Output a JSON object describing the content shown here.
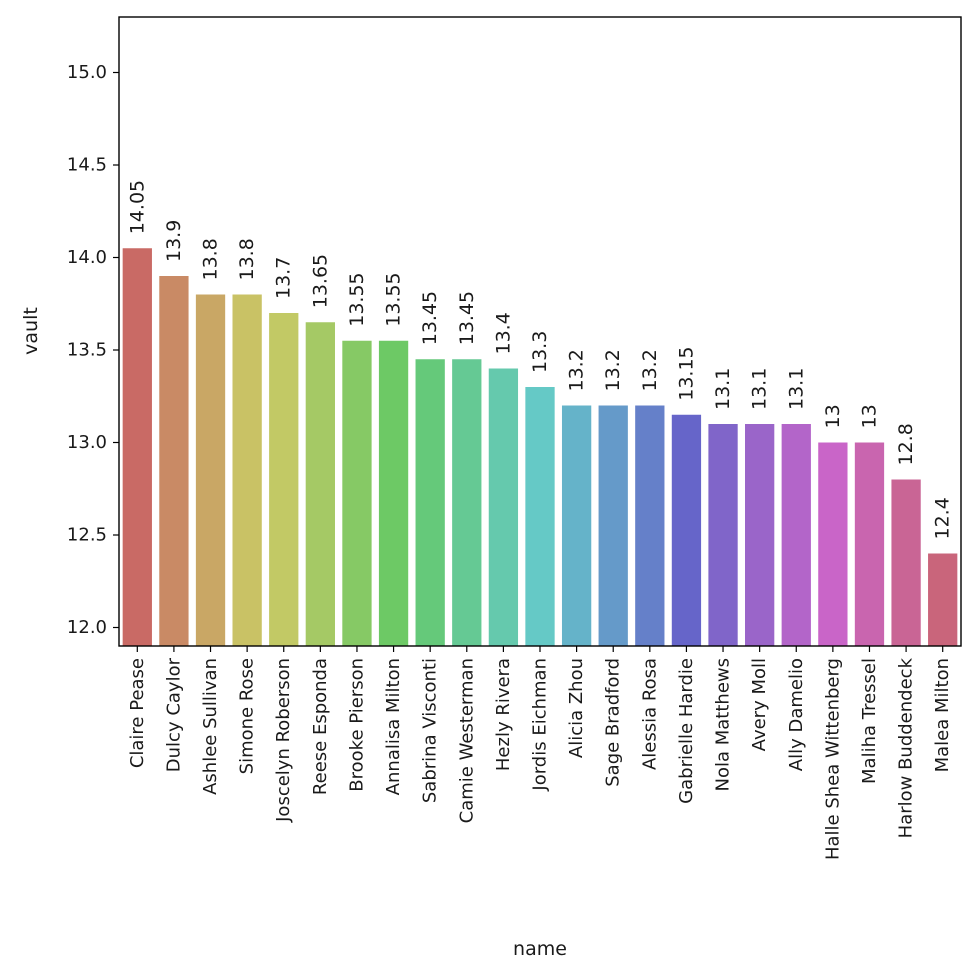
{
  "chart_data": {
    "type": "bar",
    "title": "",
    "xlabel": "name",
    "ylabel": "vault",
    "ylim": [
      11.9,
      15.3
    ],
    "yticks": [
      12.0,
      12.5,
      13.0,
      13.5,
      14.0,
      14.5,
      15.0
    ],
    "ytick_labels": [
      "12.0",
      "12.5",
      "13.0",
      "13.5",
      "14.0",
      "14.5",
      "15.0"
    ],
    "grid": false,
    "categories": [
      "Claire Pease",
      "Dulcy Caylor",
      "Ashlee Sullivan",
      "Simone Rose",
      "Joscelyn Roberson",
      "Reese Esponda",
      "Brooke Pierson",
      "Annalisa Milton",
      "Sabrina Visconti",
      "Camie Westerman",
      "Hezly Rivera",
      "Jordis Eichman",
      "Alicia Zhou",
      "Sage Bradford",
      "Alessia Rosa",
      "Gabrielle Hardie",
      "Nola Matthews",
      "Avery Moll",
      "Ally Damelio",
      "Halle Shea Wittenberg",
      "Maliha Tressel",
      "Harlow Buddendeck",
      "Malea Milton"
    ],
    "values": [
      14.05,
      13.9,
      13.8,
      13.8,
      13.7,
      13.65,
      13.55,
      13.55,
      13.45,
      13.45,
      13.4,
      13.3,
      13.2,
      13.2,
      13.2,
      13.15,
      13.1,
      13.1,
      13.1,
      13.0,
      13.0,
      12.8,
      12.4
    ],
    "value_labels": [
      "14.05",
      "13.9",
      "13.8",
      "13.8",
      "13.7",
      "13.65",
      "13.55",
      "13.55",
      "13.45",
      "13.45",
      "13.4",
      "13.3",
      "13.2",
      "13.2",
      "13.2",
      "13.15",
      "13.1",
      "13.1",
      "13.1",
      "13",
      "13",
      "12.8",
      "12.4"
    ],
    "colors": [
      "#c96a65",
      "#c98a65",
      "#c9a765",
      "#c9c265",
      "#c2c965",
      "#a5c965",
      "#86c965",
      "#6dc965",
      "#65c97a",
      "#65c994",
      "#65c9ad",
      "#65c9c6",
      "#65b3c9",
      "#659ac9",
      "#6580c9",
      "#6665c9",
      "#8065c9",
      "#9a65c9",
      "#b365c9",
      "#c965c8",
      "#c965af",
      "#c96595",
      "#c9657b"
    ]
  }
}
